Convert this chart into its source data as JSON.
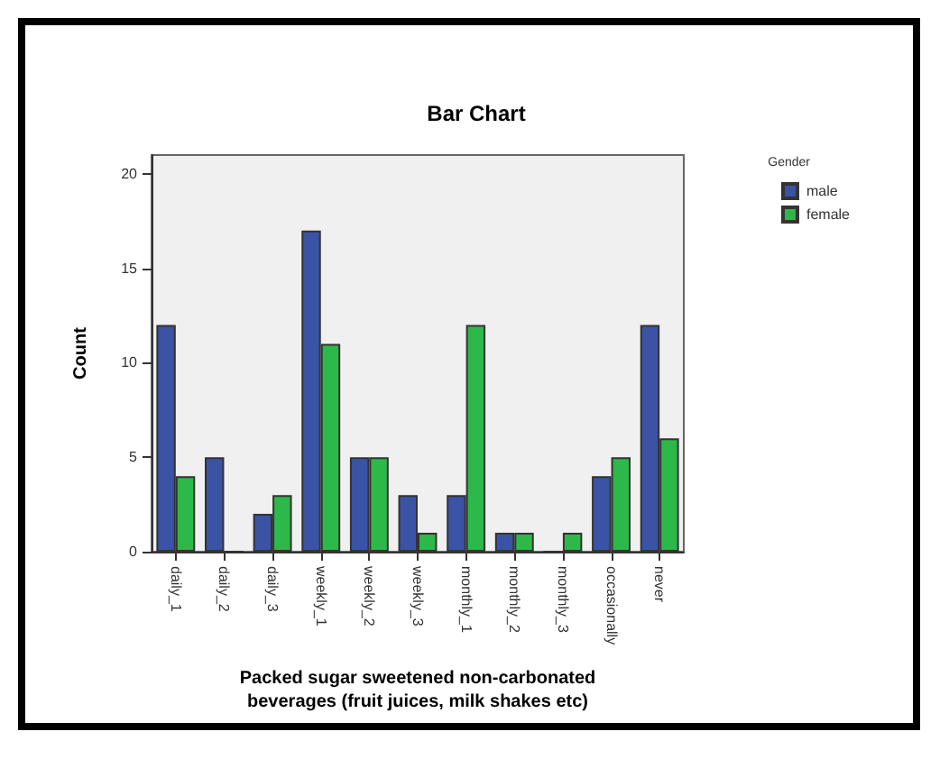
{
  "chart_data": {
    "type": "bar",
    "title": "Bar Chart",
    "xlabel": "Packed sugar sweetened non-carbonated\nbeverages (fruit juices, milk shakes etc)",
    "ylabel": "Count",
    "legend_title": "Gender",
    "categories": [
      "daily_1",
      "daily_2",
      "daily_3",
      "weekly_1",
      "weekly_2",
      "weekly_3",
      "monthly_1",
      "monthly_2",
      "monthly_3",
      "occasionally",
      "never"
    ],
    "series": [
      {
        "name": "male",
        "color": "#3a53a4",
        "values": [
          12,
          5,
          2,
          17,
          5,
          3,
          3,
          1,
          0,
          4,
          12
        ]
      },
      {
        "name": "female",
        "color": "#2db84a",
        "values": [
          4,
          0,
          3,
          11,
          5,
          1,
          12,
          1,
          1,
          5,
          6
        ]
      }
    ],
    "ylim": [
      0,
      21
    ],
    "yticks": [
      0,
      5,
      10,
      15,
      20
    ],
    "grid": false,
    "legend": "top right"
  }
}
